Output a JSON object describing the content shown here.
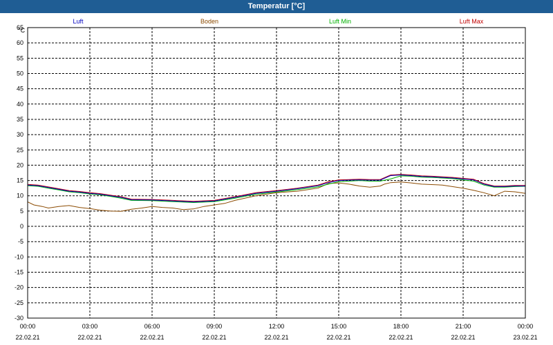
{
  "window": {
    "title": "Temperatur [°C]"
  },
  "chart_data": {
    "type": "line",
    "title": "Temperatur [°C]",
    "ylabel": "°C",
    "xlabel": "",
    "ylim": [
      -30,
      65
    ],
    "yticks": [
      65,
      60,
      55,
      50,
      45,
      40,
      35,
      30,
      25,
      20,
      15,
      10,
      5,
      0,
      -5,
      -10,
      -15,
      -20,
      -25,
      -30
    ],
    "xlim_hours": [
      0,
      24
    ],
    "xticks": [
      {
        "time": "00:00",
        "date": "22.02.21"
      },
      {
        "time": "03:00",
        "date": "22.02.21"
      },
      {
        "time": "06:00",
        "date": "22.02.21"
      },
      {
        "time": "09:00",
        "date": "22.02.21"
      },
      {
        "time": "12:00",
        "date": "22.02.21"
      },
      {
        "time": "15:00",
        "date": "22.02.21"
      },
      {
        "time": "18:00",
        "date": "22.02.21"
      },
      {
        "time": "21:00",
        "date": "22.02.21"
      },
      {
        "time": "00:00",
        "date": "23.02.21"
      }
    ],
    "grid": true,
    "legend_position": "top",
    "series": [
      {
        "name": "Luft",
        "color": "#0000c0",
        "x": [
          0,
          0.5,
          1,
          1.5,
          2,
          2.5,
          3,
          3.5,
          4,
          4.5,
          5,
          6,
          7,
          8,
          9,
          10,
          11,
          12,
          13,
          14,
          14.5,
          15,
          15.5,
          16,
          16.5,
          17,
          17.5,
          18,
          18.5,
          19,
          19.5,
          20,
          20.5,
          21,
          21.5,
          22,
          22.5,
          23,
          23.5,
          24
        ],
        "y": [
          13.5,
          13.3,
          12.7,
          12.1,
          11.5,
          11.2,
          10.8,
          10.5,
          10,
          9.5,
          8.7,
          8.6,
          8.3,
          8,
          8.3,
          9.5,
          10.8,
          11.5,
          12.3,
          13.3,
          14.3,
          15,
          15.1,
          15.2,
          15.1,
          15.1,
          16.6,
          16.8,
          16.6,
          16.3,
          16.2,
          16,
          15.8,
          15.5,
          15.2,
          13.8,
          13,
          13,
          13.2,
          13.2
        ]
      },
      {
        "name": "Boden",
        "color": "#8b4a00",
        "x": [
          0,
          0.3,
          0.7,
          1,
          1.5,
          2,
          2.5,
          3,
          3.5,
          4,
          4.5,
          5,
          5.5,
          6,
          6.5,
          7,
          7.5,
          8,
          8.5,
          9,
          9.5,
          10,
          11,
          12,
          13,
          14,
          14.5,
          15,
          15.5,
          16,
          16.5,
          17,
          17.2,
          17.5,
          18,
          18.5,
          19,
          20,
          21,
          21.5,
          22,
          22.5,
          23,
          23.5,
          24
        ],
        "y": [
          8,
          7,
          6.5,
          6,
          6.5,
          6.8,
          6.2,
          5.8,
          5.3,
          5,
          4.9,
          5.6,
          6,
          6.5,
          6.2,
          6,
          5.5,
          5.7,
          6.5,
          7,
          7.5,
          8.5,
          10,
          11,
          11.5,
          12.5,
          14,
          14.2,
          13.8,
          13.2,
          12.8,
          13.2,
          13.8,
          14.3,
          14.5,
          14.2,
          13.8,
          13.5,
          12.5,
          11.8,
          11,
          10,
          11.5,
          11.3,
          10.8
        ]
      },
      {
        "name": "Luft Min",
        "color": "#00b000",
        "x": [
          0,
          0.5,
          1,
          1.5,
          2,
          2.5,
          3,
          3.5,
          4,
          4.5,
          5,
          6,
          7,
          8,
          9,
          10,
          11,
          12,
          13,
          14,
          14.5,
          15,
          15.5,
          16,
          16.5,
          17,
          17.5,
          18,
          18.5,
          19,
          19.5,
          20,
          20.5,
          21,
          21.5,
          22,
          22.5,
          23,
          23.5,
          24
        ],
        "y": [
          13.3,
          13.1,
          12.5,
          11.9,
          11.3,
          11,
          10.6,
          10.3,
          9.8,
          9.2,
          8.5,
          8.4,
          8.1,
          7.8,
          8.1,
          9.2,
          10.5,
          11.2,
          12,
          12.9,
          13.8,
          14.6,
          14.8,
          15,
          14.8,
          14.8,
          15.5,
          16.5,
          16.4,
          16.1,
          16,
          15.8,
          15.6,
          15.2,
          14.8,
          13.5,
          12.8,
          12.8,
          13,
          13.1
        ]
      },
      {
        "name": "Luft Max",
        "color": "#c00000",
        "x": [
          0,
          0.5,
          1,
          1.5,
          2,
          2.5,
          3,
          3.5,
          4,
          4.5,
          5,
          6,
          7,
          8,
          9,
          10,
          11,
          12,
          13,
          14,
          14.5,
          15,
          15.5,
          16,
          16.5,
          17,
          17.5,
          18,
          18.5,
          19,
          19.5,
          20,
          20.5,
          21,
          21.5,
          22,
          22.5,
          23,
          23.5,
          24
        ],
        "y": [
          13.7,
          13.5,
          12.9,
          12.3,
          11.7,
          11.4,
          11,
          10.7,
          10.2,
          9.7,
          8.9,
          8.8,
          8.5,
          8.2,
          8.5,
          9.7,
          11,
          11.7,
          12.5,
          13.5,
          14.6,
          15.2,
          15.3,
          15.4,
          15.3,
          15.3,
          16.8,
          17,
          16.8,
          16.5,
          16.4,
          16.2,
          16,
          15.7,
          15.4,
          14,
          13.2,
          13.2,
          13.4,
          13.4
        ]
      }
    ]
  }
}
